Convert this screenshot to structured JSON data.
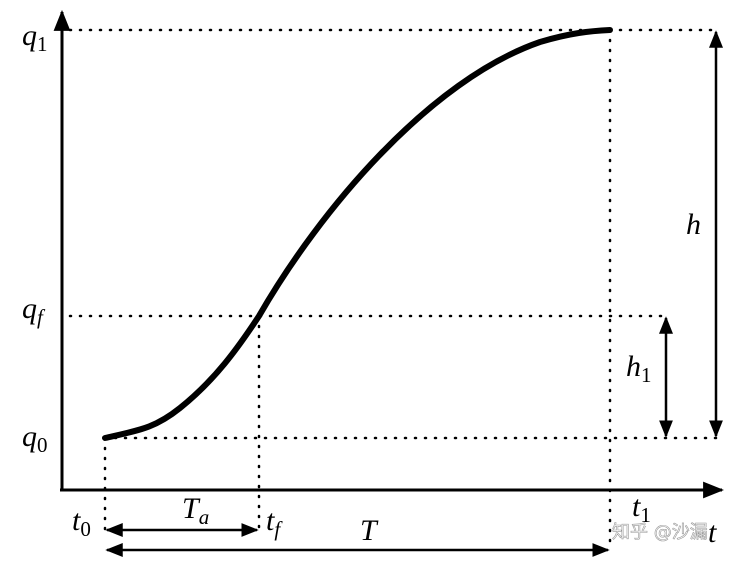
{
  "labels": {
    "q1": {
      "base": "q",
      "sub": "1"
    },
    "qf": {
      "base": "q",
      "sub": "f"
    },
    "q0": {
      "base": "q",
      "sub": "0"
    },
    "t0": {
      "base": "t",
      "sub": "0"
    },
    "Ta": {
      "base": "T",
      "sub": "a"
    },
    "tf": {
      "base": "t",
      "sub": "f"
    },
    "T": "T",
    "t1": {
      "base": "t",
      "sub": "1"
    },
    "t": "t",
    "h": "h",
    "h1": {
      "base": "h",
      "sub": "1"
    }
  },
  "watermark": "知乎 @沙漏"
}
